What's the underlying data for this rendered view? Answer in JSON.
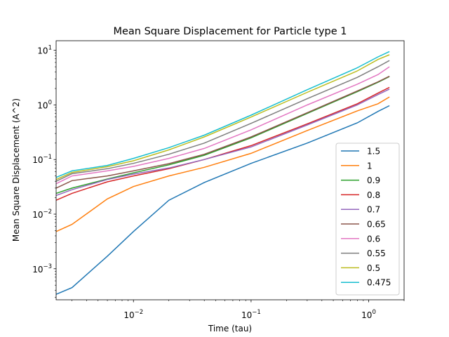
{
  "chart_data": {
    "type": "line",
    "title": "Mean Square Displacement for Particle type 1",
    "xlabel": "Time (tau)",
    "ylabel": "Mean Square Displacement (A^2)",
    "xscale": "log",
    "yscale": "log",
    "xlim": [
      0.0022,
      2.0
    ],
    "ylim": [
      0.00027,
      15
    ],
    "xticks": [
      {
        "value": 0.01,
        "base": "10",
        "exp": "−2"
      },
      {
        "value": 0.1,
        "base": "10",
        "exp": "−1"
      },
      {
        "value": 1,
        "base": "10",
        "exp": "0"
      }
    ],
    "yticks": [
      {
        "value": 0.001,
        "base": "10",
        "exp": "−3"
      },
      {
        "value": 0.01,
        "base": "10",
        "exp": "−2"
      },
      {
        "value": 0.1,
        "base": "10",
        "exp": "−1"
      },
      {
        "value": 1,
        "base": "10",
        "exp": "0"
      },
      {
        "value": 10,
        "base": "10",
        "exp": "1"
      }
    ],
    "grid": false,
    "legend_position": "lower-right",
    "x": [
      0.0022,
      0.003,
      0.006,
      0.01,
      0.02,
      0.04,
      0.1,
      0.3,
      0.8,
      1.2,
      1.5
    ],
    "series": [
      {
        "name": "1.5",
        "color": "#1f77b4",
        "values": [
          0.00034,
          0.00045,
          0.0017,
          0.0048,
          0.018,
          0.038,
          0.085,
          0.2,
          0.47,
          0.76,
          0.97
        ]
      },
      {
        "name": "1",
        "color": "#ff7f0e",
        "values": [
          0.0048,
          0.0065,
          0.019,
          0.032,
          0.05,
          0.072,
          0.13,
          0.34,
          0.78,
          1.05,
          1.4
        ]
      },
      {
        "name": "0.9",
        "color": "#2ca02c",
        "values": [
          0.024,
          0.03,
          0.044,
          0.057,
          0.08,
          0.12,
          0.25,
          0.7,
          1.75,
          2.6,
          3.3
        ]
      },
      {
        "name": "0.8",
        "color": "#d62728",
        "values": [
          0.018,
          0.024,
          0.039,
          0.05,
          0.068,
          0.1,
          0.18,
          0.45,
          1.05,
          1.65,
          2.1
        ]
      },
      {
        "name": "0.7",
        "color": "#9467bd",
        "values": [
          0.022,
          0.028,
          0.043,
          0.054,
          0.07,
          0.1,
          0.17,
          0.43,
          1.0,
          1.55,
          1.95
        ]
      },
      {
        "name": "0.65",
        "color": "#8c564b",
        "values": [
          0.03,
          0.041,
          0.05,
          0.062,
          0.084,
          0.125,
          0.26,
          0.72,
          1.8,
          2.65,
          3.35
        ]
      },
      {
        "name": "0.6",
        "color": "#e377c2",
        "values": [
          0.036,
          0.05,
          0.062,
          0.075,
          0.105,
          0.16,
          0.35,
          1.0,
          2.4,
          3.6,
          5.0
        ]
      },
      {
        "name": "0.55",
        "color": "#7f7f7f",
        "values": [
          0.04,
          0.055,
          0.068,
          0.085,
          0.125,
          0.2,
          0.46,
          1.3,
          3.2,
          5.0,
          6.5
        ]
      },
      {
        "name": "0.5",
        "color": "#bcbd22",
        "values": [
          0.043,
          0.058,
          0.074,
          0.095,
          0.15,
          0.26,
          0.6,
          1.7,
          4.2,
          6.8,
          8.3
        ]
      },
      {
        "name": "0.475",
        "color": "#17becf",
        "values": [
          0.047,
          0.062,
          0.078,
          0.105,
          0.165,
          0.28,
          0.65,
          1.9,
          4.8,
          7.6,
          9.5
        ]
      }
    ]
  }
}
